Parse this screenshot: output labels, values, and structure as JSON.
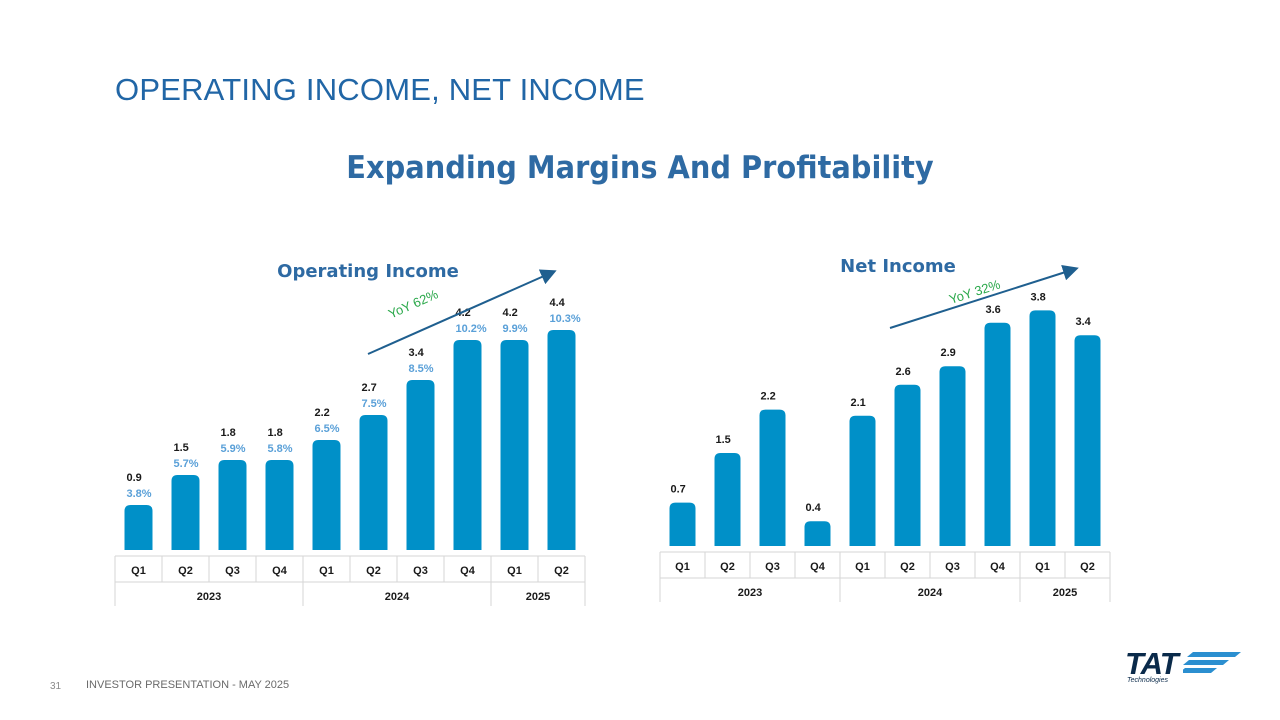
{
  "slide": {
    "title": "OPERATING INCOME, NET INCOME",
    "subtitle": "Expanding Margins And Profitability",
    "page_number": "31",
    "footer": "INVESTOR PRESENTATION  -  MAY 2025",
    "logo_text": "TAT",
    "logo_subtext": "Technologies",
    "brand_color": "#0090c8"
  },
  "chart_data": [
    {
      "type": "bar",
      "title": "Operating Income",
      "categories": [
        "Q1",
        "Q2",
        "Q3",
        "Q4",
        "Q1",
        "Q2",
        "Q3",
        "Q4",
        "Q1",
        "Q2"
      ],
      "years": [
        {
          "label": "2023",
          "span": 4
        },
        {
          "label": "2024",
          "span": 4
        },
        {
          "label": "2025",
          "span": 2
        }
      ],
      "values": [
        0.9,
        1.5,
        1.8,
        1.8,
        2.2,
        2.7,
        3.4,
        4.2,
        4.2,
        4.4
      ],
      "margins": [
        "3.8%",
        "5.7%",
        "5.9%",
        "5.8%",
        "6.5%",
        "7.5%",
        "8.5%",
        "10.2%",
        "9.9%",
        "10.3%"
      ],
      "annotation": "YoY 62%",
      "bar_color": "#0090c8",
      "margin_color": "#5aa0d8",
      "annotation_color": "#2aa84a"
    },
    {
      "type": "bar",
      "title": "Net Income",
      "categories": [
        "Q1",
        "Q2",
        "Q3",
        "Q4",
        "Q1",
        "Q2",
        "Q3",
        "Q4",
        "Q1",
        "Q2"
      ],
      "years": [
        {
          "label": "2023",
          "span": 4
        },
        {
          "label": "2024",
          "span": 4
        },
        {
          "label": "2025",
          "span": 2
        }
      ],
      "values": [
        0.7,
        1.5,
        2.2,
        0.4,
        2.1,
        2.6,
        2.9,
        3.6,
        3.8,
        3.4
      ],
      "annotation": "YoY 32%",
      "bar_color": "#0090c8",
      "annotation_color": "#2aa84a"
    }
  ]
}
